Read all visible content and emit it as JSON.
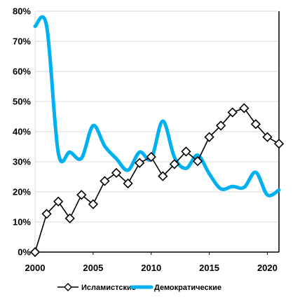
{
  "chart_data": {
    "type": "line",
    "title": "",
    "xlabel": "",
    "ylabel": "",
    "xlim": [
      2000,
      2021
    ],
    "ylim": [
      0,
      80
    ],
    "x_ticks": [
      2000,
      2005,
      2010,
      2015,
      2020
    ],
    "y_ticks": [
      0,
      10,
      20,
      30,
      40,
      50,
      60,
      70,
      80
    ],
    "y_tick_suffix": "%",
    "grid": "horizontal",
    "legend_position": "bottom",
    "series": [
      {
        "name": "Исламистские",
        "style": "line-with-diamond-markers",
        "color": "#000000",
        "smooth": false,
        "x": [
          2000,
          2001,
          2002,
          2003,
          2004,
          2005,
          2006,
          2007,
          2008,
          2009,
          2010,
          2011,
          2012,
          2013,
          2014,
          2015,
          2016,
          2017,
          2018,
          2019,
          2020,
          2021
        ],
        "values": [
          0,
          12.7,
          16.8,
          11.2,
          19.0,
          15.9,
          23.6,
          26.3,
          22.8,
          29.6,
          31.6,
          25.2,
          29.2,
          33.4,
          30.2,
          38.2,
          42.0,
          46.4,
          47.8,
          42.5,
          38.2,
          36.0
        ]
      },
      {
        "name": "Демократические",
        "style": "thick-smooth-line",
        "color": "#00b0f0",
        "smooth": true,
        "x": [
          2000,
          2001,
          2002,
          2003,
          2004,
          2005,
          2006,
          2007,
          2008,
          2009,
          2010,
          2011,
          2012,
          2013,
          2014,
          2015,
          2016,
          2017,
          2018,
          2019,
          2020,
          2021
        ],
        "values": [
          75,
          75,
          33,
          33.2,
          31.2,
          42,
          35.2,
          31,
          27.2,
          33.2,
          31,
          43.5,
          31.5,
          27.8,
          32.2,
          26,
          21,
          21.8,
          21.5,
          26.5,
          19,
          20.6
        ]
      }
    ]
  }
}
